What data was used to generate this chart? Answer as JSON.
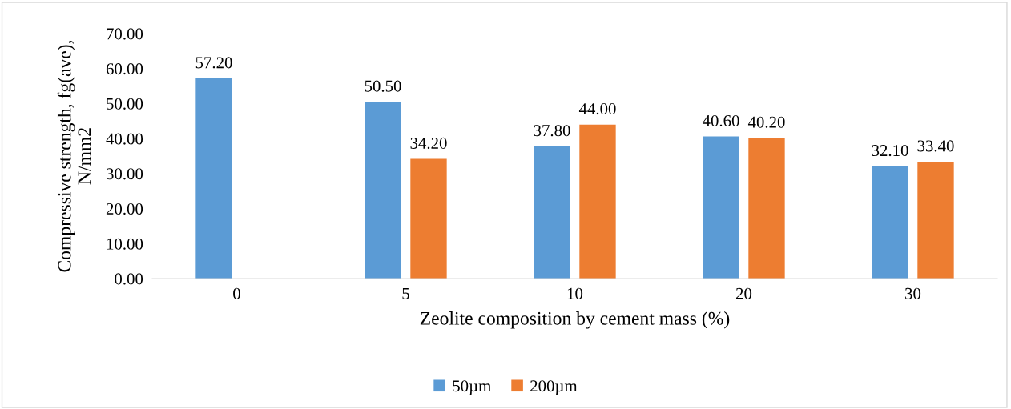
{
  "chart_data": {
    "type": "bar",
    "xlabel": "Zeolite composition by cement mass (%)",
    "ylabel": "Compressive strength, fg(ave),\nN/mm2",
    "categories": [
      "0",
      "5",
      "10",
      "20",
      "30"
    ],
    "series": [
      {
        "name": "50µm",
        "color": "#5b9bd5",
        "values": [
          57.2,
          50.5,
          37.8,
          40.6,
          32.1
        ],
        "value_labels": [
          "57.20",
          "50.50",
          "37.80",
          "40.60",
          "32.10"
        ]
      },
      {
        "name": "200µm",
        "color": "#ed7d31",
        "values": [
          null,
          34.2,
          44.0,
          40.2,
          33.4
        ],
        "value_labels": [
          null,
          "34.20",
          "44.00",
          "40.20",
          "33.40"
        ]
      }
    ],
    "ylim": [
      0,
      70
    ],
    "yticks": [
      {
        "value": 0,
        "label": "0.00"
      },
      {
        "value": 10,
        "label": "10.00"
      },
      {
        "value": 20,
        "label": "20.00"
      },
      {
        "value": 30,
        "label": "30.00"
      },
      {
        "value": 40,
        "label": "40.00"
      },
      {
        "value": 50,
        "label": "50.00"
      },
      {
        "value": 60,
        "label": "60.00"
      },
      {
        "value": 70,
        "label": "70.00"
      }
    ],
    "grid": false,
    "legend": "bottom"
  }
}
